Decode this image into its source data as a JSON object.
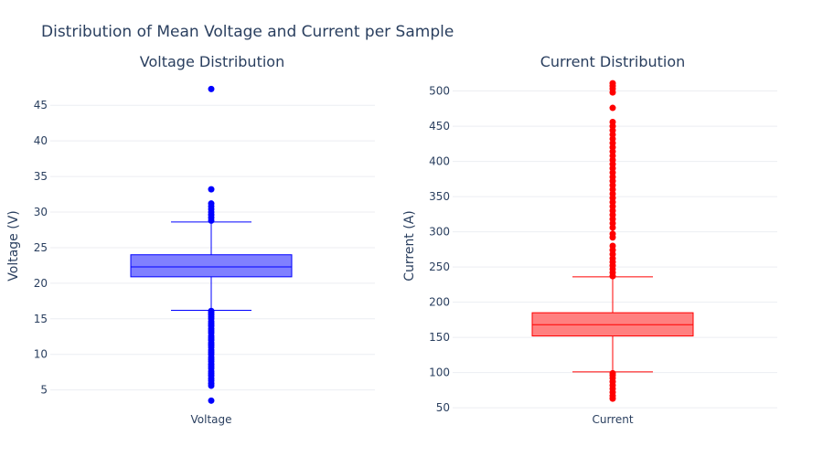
{
  "title": "Distribution of Mean Voltage and Current per Sample",
  "chart_data": [
    {
      "type": "box",
      "title": "Voltage Distribution",
      "category": "Voltage",
      "ylabel": "Voltage (V)",
      "ylim": [
        2,
        48.5
      ],
      "yticks": [
        5,
        10,
        15,
        20,
        25,
        30,
        35,
        40,
        45
      ],
      "color": "#0000ff",
      "fill": "#8080ff",
      "stats": {
        "lower_fence": 16.2,
        "q1": 20.9,
        "median": 22.3,
        "q3": 24.0,
        "upper_fence": 28.6
      },
      "outliers": [
        3.5,
        5.6,
        5.9,
        6.3,
        6.6,
        7.0,
        7.3,
        7.6,
        8.0,
        8.3,
        8.6,
        9.0,
        9.3,
        9.6,
        10.0,
        10.3,
        10.6,
        11.0,
        11.3,
        11.6,
        12.0,
        12.3,
        12.6,
        13.0,
        13.3,
        13.6,
        14.0,
        14.3,
        14.6,
        15.0,
        15.3,
        15.6,
        15.9,
        16.1,
        28.8,
        29.2,
        29.6,
        30.0,
        30.4,
        30.8,
        31.2,
        33.2,
        47.3
      ]
    },
    {
      "type": "box",
      "title": "Current Distribution",
      "category": "Current",
      "ylabel": "Current (A)",
      "ylim": [
        45,
        515
      ],
      "yticks": [
        50,
        100,
        150,
        200,
        250,
        300,
        350,
        400,
        450,
        500
      ],
      "color": "#ff0000",
      "fill": "#ff8080",
      "stats": {
        "lower_fence": 101,
        "q1": 152,
        "median": 168,
        "q3": 185,
        "upper_fence": 236
      },
      "outliers": [
        63,
        67,
        72,
        77,
        82,
        87,
        92,
        96,
        99,
        237,
        242,
        247,
        252,
        257,
        262,
        268,
        274,
        280,
        292,
        297,
        306,
        312,
        318,
        324,
        330,
        336,
        342,
        348,
        354,
        360,
        366,
        372,
        378,
        384,
        390,
        396,
        402,
        408,
        414,
        420,
        426,
        432,
        438,
        444,
        450,
        456,
        476,
        498,
        503,
        507,
        511
      ]
    }
  ]
}
